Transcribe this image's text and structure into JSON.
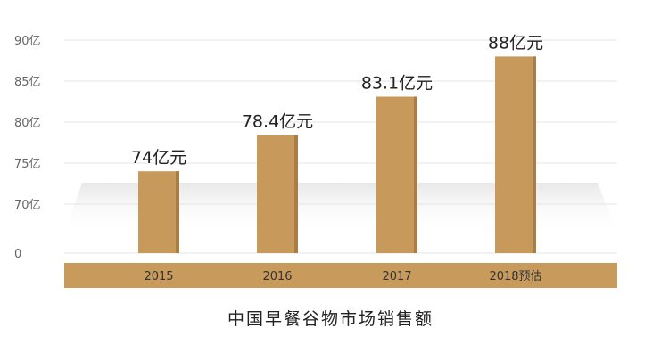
{
  "chart_data": {
    "type": "bar",
    "title": "中国早餐谷物市场销售额",
    "categories": [
      "2015",
      "2016",
      "2017",
      "2018预估"
    ],
    "values": [
      74,
      78.4,
      83.1,
      88
    ],
    "data_labels": [
      "74亿元",
      "78.4亿元",
      "83.1亿元",
      "88亿元"
    ],
    "y_ticks": [
      "0",
      "70亿",
      "75亿",
      "80亿",
      "85亿",
      "90亿"
    ],
    "y_tick_values": [
      0,
      70,
      75,
      80,
      85,
      90
    ],
    "y_axis_break": true,
    "unit": "亿元",
    "grid": true,
    "legend": "none",
    "colors": {
      "bar": "#c79a5c",
      "bar_shade": "#a97d43",
      "category_band": "#c89a5c",
      "grid": "#e4e4e4",
      "tick_text": "#666666",
      "label_text": "#222222"
    }
  }
}
